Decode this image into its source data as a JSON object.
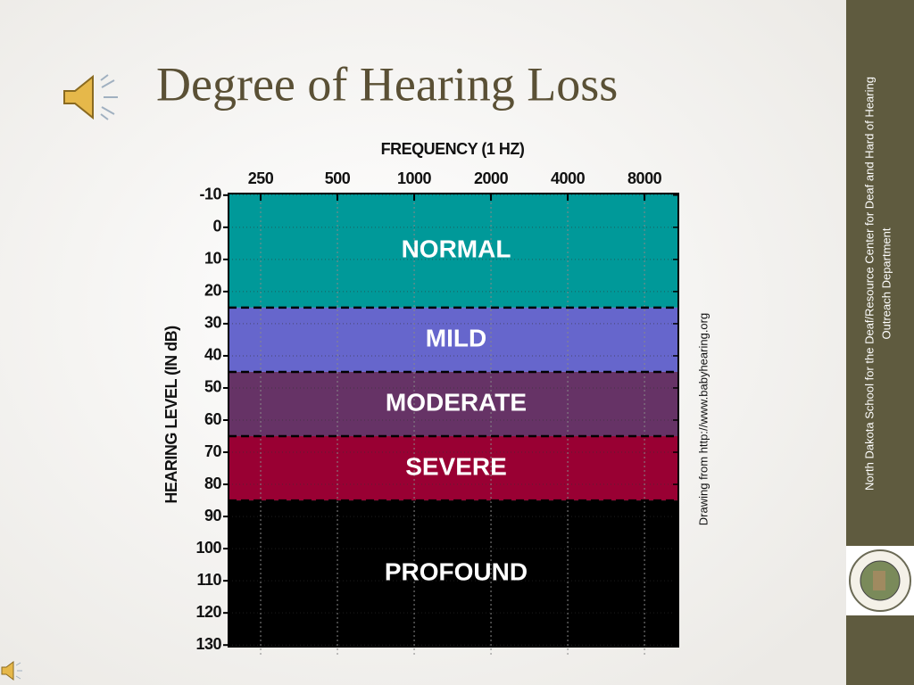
{
  "slide": {
    "title": "Degree of Hearing Loss",
    "credit": "Drawing from http://www.babyhearing.org",
    "sidebar_lines": [
      "North Dakota School for the Deaf/Resource Center for Deaf and Hard of Hearing",
      "Outreach Department"
    ]
  },
  "chart_data": {
    "type": "band",
    "x_label": "FREQUENCY (1 HZ)",
    "y_label": "HEARING LEVEL (IN dB)",
    "xscale": "log",
    "xlim": [
      187,
      10860
    ],
    "xticks": [
      250,
      500,
      1000,
      2000,
      4000,
      8000
    ],
    "ylim": [
      -10.5,
      130.5
    ],
    "yticks": [
      -10,
      0,
      10,
      20,
      30,
      40,
      50,
      60,
      70,
      80,
      90,
      100,
      110,
      120,
      130
    ],
    "y_inverted": true,
    "grid": true,
    "bands": [
      {
        "name": "NORMAL",
        "from": -10,
        "to": 25,
        "color": "#009999"
      },
      {
        "name": "MILD",
        "from": 25,
        "to": 45,
        "color": "#6666cc"
      },
      {
        "name": "MODERATE",
        "from": 45,
        "to": 65,
        "color": "#663366"
      },
      {
        "name": "SEVERE",
        "from": 65,
        "to": 85,
        "color": "#990033"
      },
      {
        "name": "PROFOUND",
        "from": 85,
        "to": 130,
        "color": "#000000"
      }
    ]
  }
}
